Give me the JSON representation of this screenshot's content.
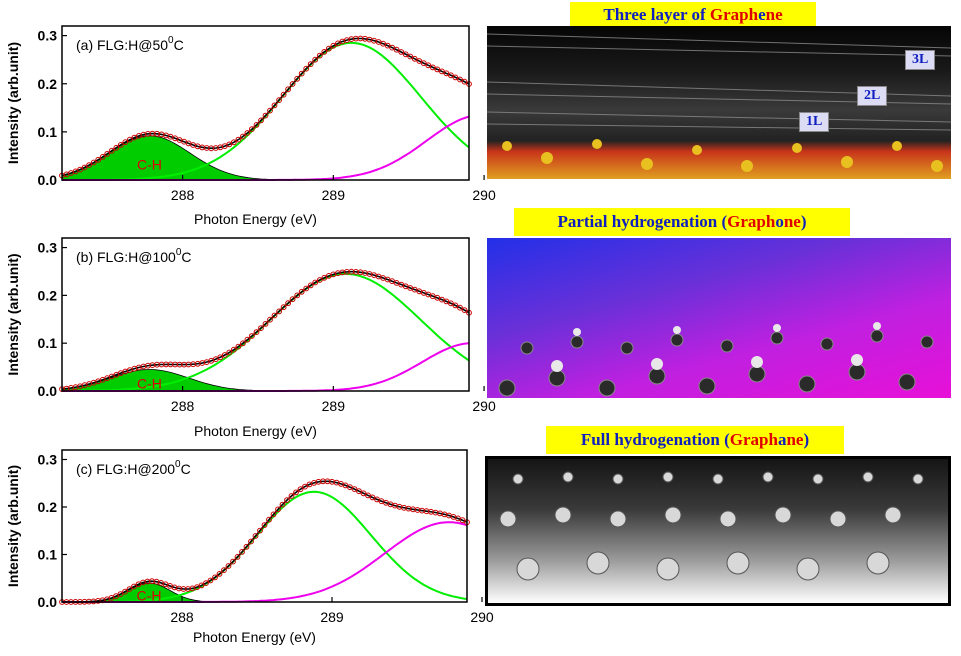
{
  "chart_data": [
    {
      "type": "line",
      "panel_label": "(a) FLG:H@50",
      "panel_label_sup": "0",
      "panel_label_tail": "C",
      "xlabel": "Photon Energy (eV)",
      "ylabel": "Intensity (arb.unit)",
      "xlim": [
        287.2,
        289.9
      ],
      "ylim": [
        0.0,
        0.32
      ],
      "xticks": [
        288,
        289,
        290
      ],
      "yticks": [
        0.0,
        0.1,
        0.2,
        0.3
      ],
      "peak_label": "C-H",
      "series": [
        {
          "name": "C-H",
          "color": "#00cc00",
          "filled": true,
          "center": 287.78,
          "amp": 0.092,
          "sigma": 0.27
        },
        {
          "name": "",
          "color": "#00ee00",
          "center": 289.12,
          "amp": 0.285,
          "sigma": 0.46
        },
        {
          "name": "",
          "color": "#ee00ee",
          "center": 289.98,
          "amp": 0.135,
          "sigma": 0.36
        }
      ],
      "markers": "data",
      "fit_color": "#000000",
      "marker_color": "#cc0000"
    },
    {
      "type": "line",
      "panel_label": "(b) FLG:H@100",
      "panel_label_sup": "0",
      "panel_label_tail": "C",
      "xlabel": "Photon Energy (eV)",
      "ylabel": "Intensity (arb.unit)",
      "xlim": [
        287.2,
        289.9
      ],
      "ylim": [
        0.0,
        0.32
      ],
      "xticks": [
        288,
        289,
        290
      ],
      "yticks": [
        0.0,
        0.1,
        0.2,
        0.3
      ],
      "peak_label": "C-H",
      "series": [
        {
          "name": "C-H",
          "color": "#00cc00",
          "filled": true,
          "center": 287.78,
          "amp": 0.045,
          "sigma": 0.26
        },
        {
          "name": "",
          "color": "#00ee00",
          "center": 289.08,
          "amp": 0.245,
          "sigma": 0.5
        },
        {
          "name": "",
          "color": "#ee00ee",
          "center": 289.92,
          "amp": 0.1,
          "sigma": 0.33
        }
      ],
      "markers": "data",
      "fit_color": "#000000",
      "marker_color": "#cc0000"
    },
    {
      "type": "line",
      "panel_label": "(c) FLG:H@200",
      "panel_label_sup": "0",
      "panel_label_tail": "C",
      "xlabel": "Photon Energy (eV)",
      "ylabel": "Intensity (arb.unit)",
      "xlim": [
        287.2,
        289.9
      ],
      "ylim": [
        0.0,
        0.32
      ],
      "xticks": [
        288,
        289,
        290
      ],
      "yticks": [
        0.0,
        0.1,
        0.2,
        0.3
      ],
      "peak_label": "C-H",
      "series": [
        {
          "name": "C-H",
          "color": "#00cc00",
          "filled": true,
          "center": 287.78,
          "amp": 0.04,
          "sigma": 0.14
        },
        {
          "name": "",
          "color": "#00ee00",
          "center": 288.88,
          "amp": 0.232,
          "sigma": 0.38
        },
        {
          "name": "",
          "color": "#ee00ee",
          "center": 289.78,
          "amp": 0.168,
          "sigma": 0.43
        }
      ],
      "markers": "data",
      "fit_color": "#000000",
      "marker_color": "#cc0000"
    }
  ],
  "banners": {
    "top": {
      "text": "Three layer of ",
      "red1": "Graph",
      "mid": "e",
      "red2": "ne"
    },
    "middle": {
      "text": "Partial hydrogenation (",
      "red1": "Graph",
      "mid": "o",
      "red2": "ne",
      "tail": ")"
    },
    "bottom": {
      "text": "Full hydrogenation (",
      "red1": "Graph",
      "mid": "a",
      "red2": "ne",
      "tail": ")"
    }
  },
  "layer_tags": [
    "3L",
    "2L",
    "1L"
  ]
}
